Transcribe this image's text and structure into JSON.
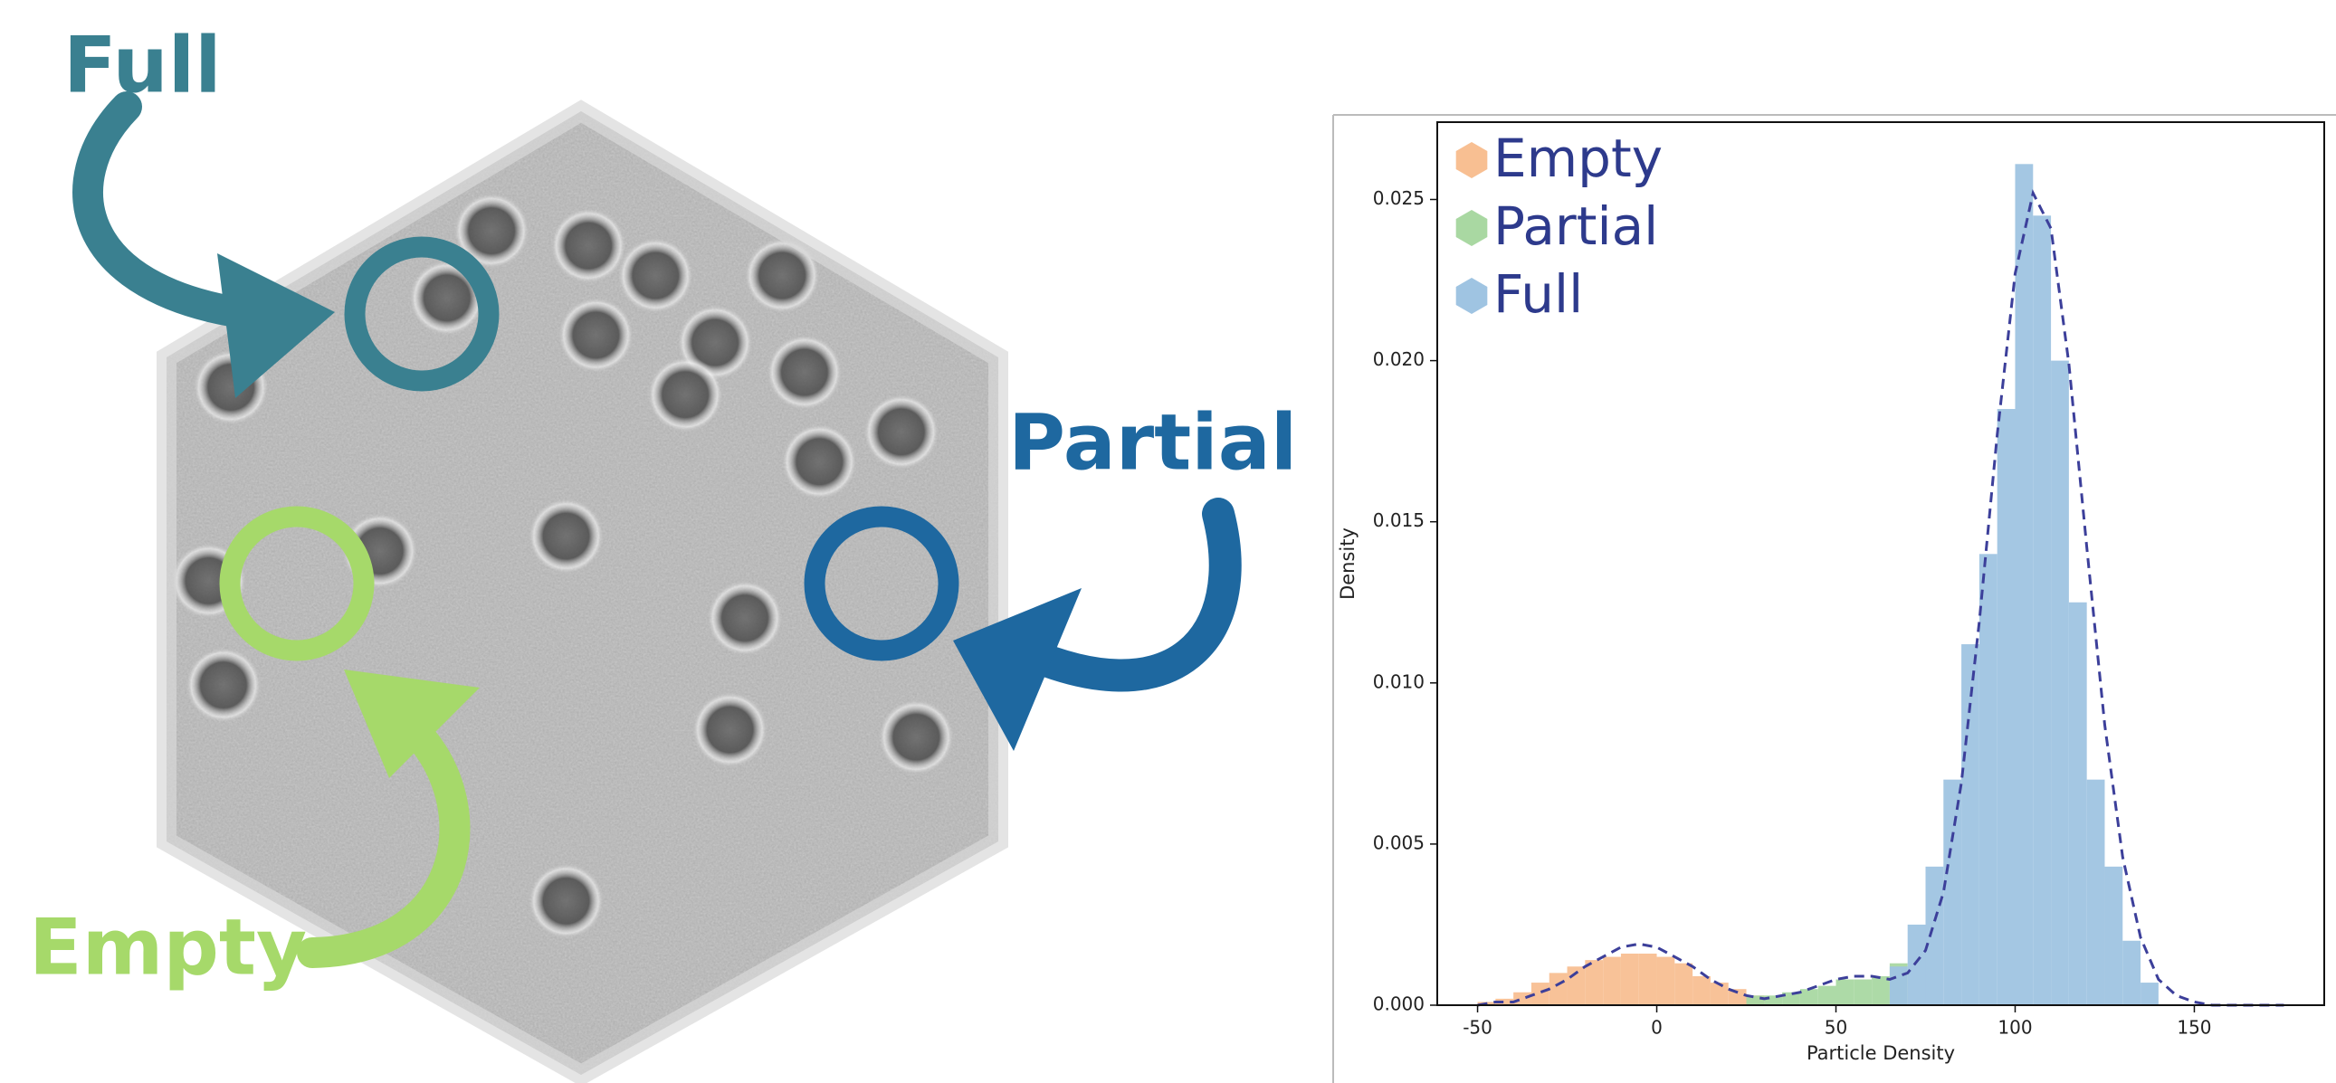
{
  "illustration": {
    "labels": [
      "Full",
      "Partial",
      "Empty"
    ]
  },
  "chart_data": {
    "type": "histogram",
    "xlabel": "Particle Density",
    "ylabel": "Density",
    "xlim": [
      -61.25,
      186.25
    ],
    "ylim": [
      0,
      0.0274
    ],
    "xticks": [
      -50,
      0,
      50,
      100,
      150
    ],
    "yticks": [
      {
        "value": 0,
        "label": "0.000"
      },
      0.005,
      {
        "value": 0.01,
        "label": "0.010"
      },
      0.015,
      {
        "value": 0.02,
        "label": "0.020"
      },
      0.025
    ],
    "legend": "upper left",
    "series": [
      {
        "name": "Empty",
        "color": "#f8bf92",
        "bins": [
          -50,
          -45,
          -40,
          -35,
          -30,
          -25,
          -20,
          -15,
          -10,
          -5,
          0,
          5,
          10,
          15,
          20,
          25,
          30
        ],
        "values": [
          0.0001,
          0.0002,
          0.0004,
          0.0007,
          0.001,
          0.0012,
          0.0014,
          0.0015,
          0.0016,
          0.0016,
          0.0015,
          0.0013,
          0.0009,
          0.0007,
          0.0005,
          0.0003
        ]
      },
      {
        "name": "Partial",
        "color": "#a9d8a2",
        "bins": [
          25,
          30,
          35,
          40,
          45,
          50,
          55,
          60,
          65,
          70
        ],
        "values": [
          0.0003,
          0.0003,
          0.0004,
          0.0005,
          0.0006,
          0.0008,
          0.0008,
          0.0009,
          0.0013
        ]
      },
      {
        "name": "Full",
        "color": "#9fc4e2",
        "bins": [
          65,
          70,
          75,
          80,
          85,
          90,
          95,
          100,
          105,
          110,
          115,
          120,
          125,
          130,
          135,
          140
        ],
        "values": [
          0.0012,
          0.0025,
          0.0043,
          0.007,
          0.0112,
          0.014,
          0.0185,
          0.0261,
          0.0245,
          0.02,
          0.0125,
          0.007,
          0.0043,
          0.002,
          0.0007
        ]
      }
    ],
    "fit": {
      "color": "#3c3f9a",
      "x": [
        -50,
        -45,
        -40,
        -35,
        -30,
        -25,
        -20,
        -15,
        -10,
        -5,
        0,
        5,
        10,
        15,
        20,
        25,
        30,
        35,
        40,
        45,
        50,
        55,
        60,
        65,
        70,
        75,
        80,
        85,
        90,
        95,
        100,
        105,
        110,
        115,
        120,
        125,
        130,
        135,
        140,
        145,
        150,
        155,
        160,
        165,
        170,
        175
      ],
      "values": [
        0,
        0.0001,
        0.0001,
        0.0003,
        0.0005,
        0.0008,
        0.0012,
        0.0015,
        0.0018,
        0.0019,
        0.0018,
        0.0015,
        0.0012,
        0.0008,
        0.0005,
        0.0003,
        0.0002,
        0.0003,
        0.0004,
        0.0006,
        0.0008,
        0.0009,
        0.0009,
        0.0008,
        0.001,
        0.0017,
        0.0035,
        0.0069,
        0.0119,
        0.0177,
        0.0227,
        0.0252,
        0.0241,
        0.0199,
        0.0142,
        0.0087,
        0.0046,
        0.0021,
        0.0008,
        0.0003,
        0.0001,
        0,
        0,
        0,
        0,
        0
      ]
    }
  }
}
